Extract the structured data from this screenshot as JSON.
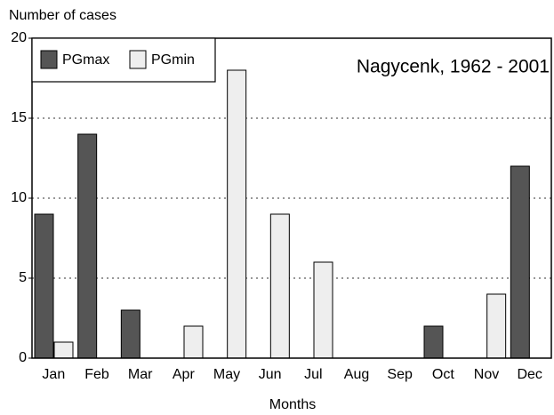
{
  "chart_data": {
    "type": "bar",
    "title": "Nagycenk, 1962 - 2001",
    "y_label": "Number of cases",
    "x_label": "Months",
    "categories": [
      "Jan",
      "Feb",
      "Mar",
      "Apr",
      "May",
      "Jun",
      "Jul",
      "Aug",
      "Sep",
      "Oct",
      "Nov",
      "Dec"
    ],
    "series": [
      {
        "name": "PGmax",
        "color": "#555555",
        "values": [
          9,
          14,
          3,
          0,
          0,
          0,
          0,
          0,
          0,
          2,
          0,
          12
        ]
      },
      {
        "name": "PGmin",
        "color": "#eeeeee",
        "values": [
          1,
          0,
          0,
          2,
          18,
          9,
          6,
          0,
          0,
          0,
          4,
          0
        ]
      }
    ],
    "ylim": [
      0,
      20
    ],
    "yticks": [
      0,
      5,
      10,
      15,
      20
    ],
    "grid": true,
    "legend": "top-left"
  }
}
